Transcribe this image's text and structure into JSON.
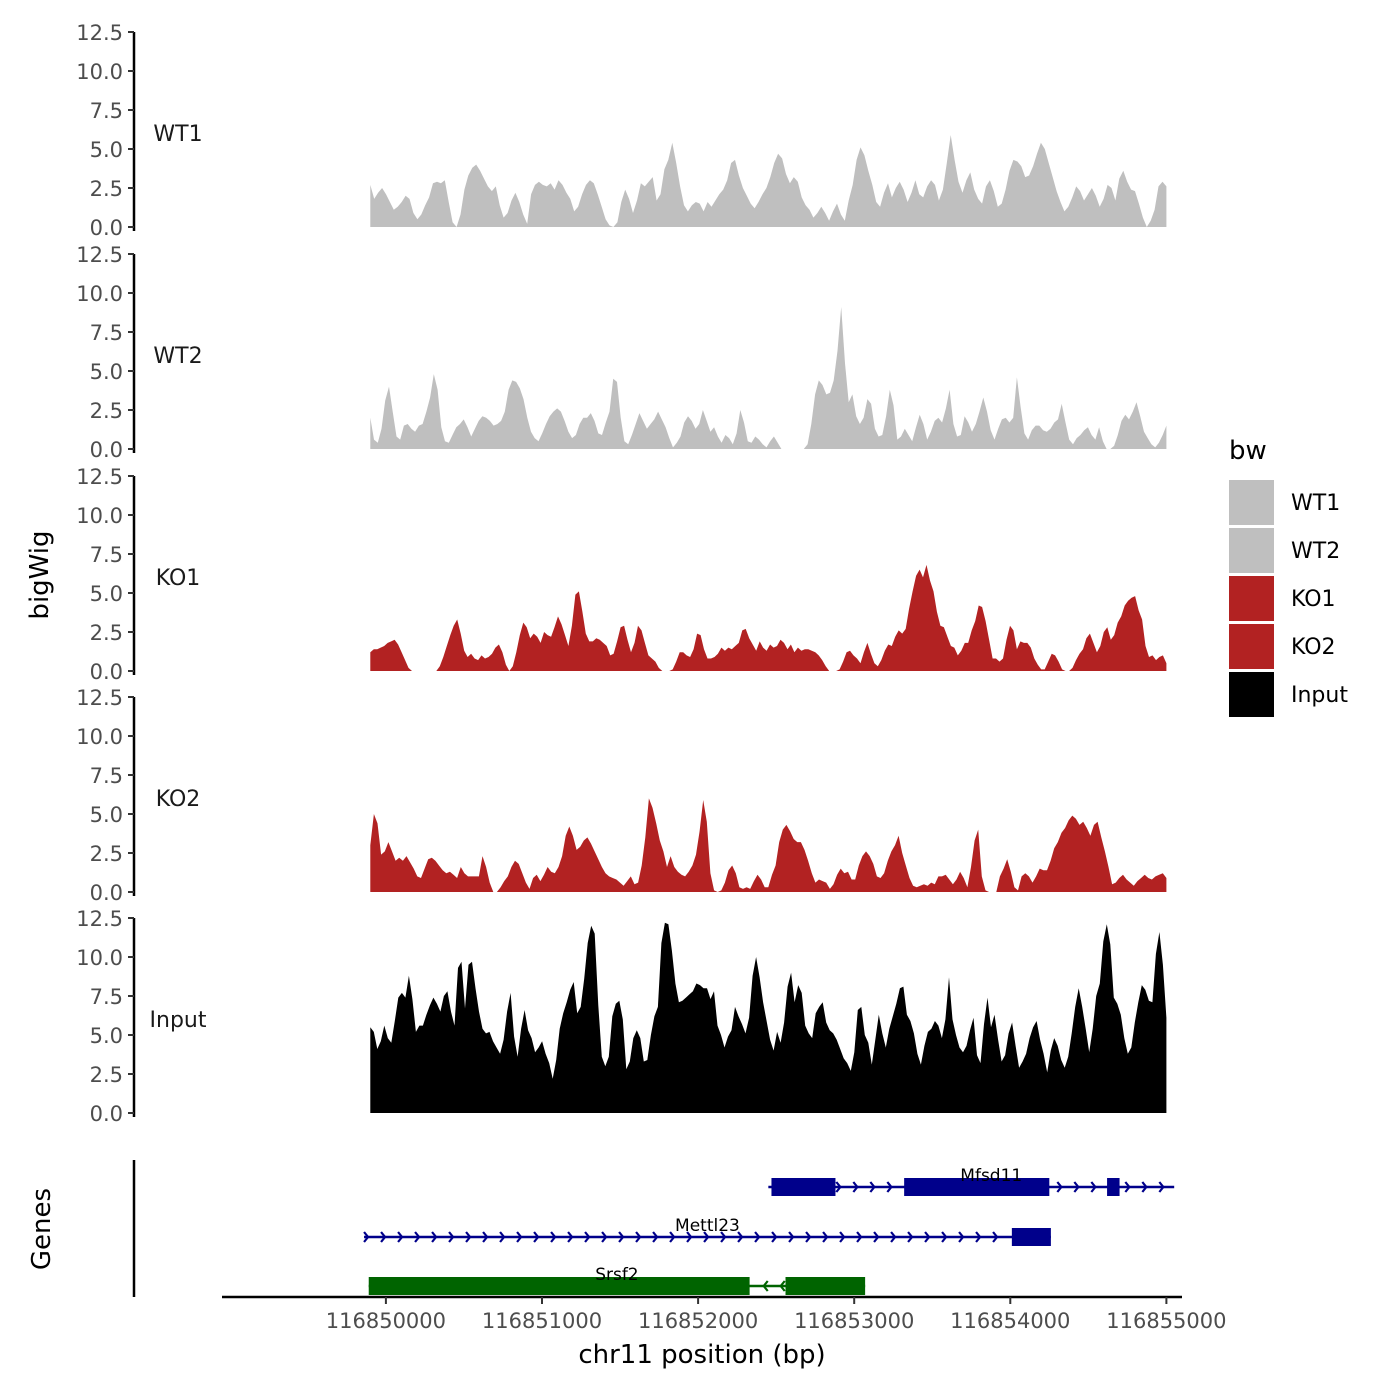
{
  "chart_data": {
    "type": "area",
    "y_axis_label": "bigWig",
    "x_axis_label": "chr11 position (bp)",
    "genes_axis_label": "Genes",
    "x_range": [
      116848950,
      116855100
    ],
    "x_ticks": [
      116850000,
      116851000,
      116852000,
      116853000,
      116854000,
      116855000
    ],
    "x_tick_labels": [
      "116850000",
      "116851000",
      "116852000",
      "116853000",
      "116854000",
      "116855000"
    ],
    "y_range": [
      0,
      12.5
    ],
    "y_ticks": [
      0,
      2.5,
      5,
      7.5,
      10,
      12.5
    ],
    "y_tick_labels": [
      "0.0",
      "2.5",
      "5.0",
      "7.5",
      "10.0",
      "12.5"
    ],
    "track_x_start": 116849900,
    "track_x_end": 116855000,
    "legend": {
      "title": "bw",
      "entries": [
        {
          "label": "WT1",
          "color": "#bfbfbf"
        },
        {
          "label": "WT2",
          "color": "#bfbfbf"
        },
        {
          "label": "KO1",
          "color": "#b22222"
        },
        {
          "label": "KO2",
          "color": "#b22222"
        },
        {
          "label": "Input",
          "color": "#000000"
        }
      ]
    },
    "tracks": [
      {
        "name": "WT1",
        "color": "#bfbfbf",
        "values": [
          2.7,
          1.8,
          2.2,
          2.5,
          2.1,
          1.6,
          1.1,
          1.3,
          1.6,
          2.0,
          1.8,
          0.9,
          0.5,
          0.8,
          1.4,
          1.9,
          2.8,
          2.9,
          2.8,
          3.0,
          1.6,
          0.3,
          0.0,
          0.8,
          2.4,
          3.3,
          3.8,
          4.0,
          3.6,
          3.1,
          2.6,
          2.3,
          2.6,
          1.4,
          0.6,
          0.9,
          1.7,
          2.2,
          1.6,
          0.8,
          0.2,
          2.1,
          2.7,
          2.9,
          2.7,
          2.6,
          2.8,
          2.4,
          3.0,
          2.7,
          2.2,
          1.8,
          1.0,
          1.3,
          2.1,
          2.7,
          3.0,
          2.8,
          2.1,
          1.3,
          0.5,
          0.1,
          0.0,
          0.3,
          1.6,
          2.4,
          1.8,
          0.9,
          1.7,
          2.8,
          2.6,
          2.9,
          3.2,
          1.7,
          2.1,
          3.7,
          4.3,
          5.4,
          4.1,
          2.6,
          1.4,
          1.0,
          1.4,
          1.6,
          1.5,
          1.0,
          1.6,
          1.3,
          1.7,
          2.1,
          2.4,
          3.0,
          4.1,
          4.3,
          3.3,
          2.5,
          2.0,
          1.5,
          1.2,
          1.6,
          2.1,
          2.5,
          3.2,
          4.1,
          4.7,
          4.4,
          3.4,
          2.8,
          3.2,
          2.9,
          1.9,
          1.4,
          1.1,
          0.6,
          0.9,
          1.3,
          0.9,
          0.4,
          1.0,
          1.5,
          0.8,
          0.4,
          1.7,
          2.7,
          4.3,
          5.1,
          4.6,
          3.6,
          2.7,
          1.6,
          1.3,
          2.2,
          2.8,
          1.9,
          2.5,
          2.9,
          2.4,
          1.6,
          2.2,
          3.0,
          2.1,
          1.9,
          2.6,
          3.0,
          2.7,
          1.7,
          2.4,
          4.1,
          5.9,
          4.3,
          2.9,
          2.2,
          3.0,
          3.5,
          2.4,
          1.8,
          1.5,
          2.6,
          3.0,
          2.3,
          1.3,
          1.5,
          2.4,
          3.6,
          4.3,
          4.2,
          3.9,
          3.2,
          3.3,
          3.9,
          4.7,
          5.4,
          5.0,
          4.1,
          3.2,
          2.3,
          1.6,
          1.0,
          1.3,
          1.9,
          2.6,
          2.3,
          1.7,
          2.1,
          2.5,
          2.0,
          1.3,
          1.8,
          2.7,
          2.5,
          1.7,
          3.1,
          3.6,
          2.9,
          2.4,
          2.3,
          1.5,
          0.6,
          0.0,
          0.4,
          1.1,
          2.6,
          2.9,
          2.6
        ]
      },
      {
        "name": "WT2",
        "color": "#bfbfbf",
        "values": [
          2.0,
          0.6,
          0.4,
          1.3,
          3.1,
          4.0,
          2.4,
          0.8,
          0.6,
          1.5,
          1.6,
          1.3,
          1.1,
          1.5,
          1.6,
          2.4,
          3.3,
          4.8,
          3.8,
          1.4,
          0.5,
          0.4,
          0.9,
          1.4,
          1.6,
          1.9,
          1.4,
          0.8,
          1.3,
          1.8,
          2.1,
          2.0,
          1.8,
          1.5,
          1.6,
          1.8,
          2.4,
          3.8,
          4.4,
          4.3,
          3.9,
          3.2,
          2.0,
          1.1,
          0.7,
          0.5,
          1.0,
          1.6,
          2.1,
          2.4,
          2.6,
          2.4,
          1.8,
          1.1,
          0.7,
          0.9,
          1.6,
          2.0,
          2.0,
          2.3,
          1.8,
          1.0,
          0.9,
          1.7,
          2.4,
          4.5,
          4.3,
          2.0,
          0.5,
          0.3,
          0.9,
          1.6,
          2.3,
          1.8,
          1.3,
          1.6,
          1.9,
          2.4,
          1.9,
          1.4,
          0.7,
          0.1,
          0.4,
          0.8,
          1.7,
          2.1,
          1.8,
          1.3,
          1.6,
          2.5,
          1.8,
          1.1,
          1.4,
          0.8,
          0.4,
          0.9,
          0.7,
          0.3,
          1.0,
          2.5,
          1.7,
          0.5,
          0.4,
          0.8,
          0.6,
          0.3,
          0.1,
          0.5,
          0.8,
          0.4,
          0.0,
          0.0,
          0.0,
          0.0,
          0.0,
          0.0,
          0.0,
          0.3,
          1.6,
          3.5,
          4.4,
          4.1,
          3.5,
          3.6,
          4.4,
          6.3,
          9.1,
          5.5,
          3.0,
          3.5,
          2.1,
          1.6,
          2.0,
          3.2,
          2.9,
          1.3,
          0.8,
          0.9,
          2.1,
          3.8,
          2.8,
          0.6,
          0.8,
          1.3,
          0.9,
          0.5,
          1.4,
          2.2,
          1.6,
          0.6,
          1.1,
          1.8,
          2.0,
          1.7,
          2.6,
          3.8,
          1.6,
          0.8,
          0.9,
          2.1,
          1.7,
          1.1,
          1.6,
          2.4,
          3.3,
          2.4,
          1.2,
          0.6,
          1.3,
          1.9,
          2.0,
          1.7,
          2.0,
          4.6,
          2.7,
          1.0,
          0.6,
          1.2,
          1.5,
          1.5,
          1.2,
          1.1,
          1.3,
          1.7,
          1.9,
          2.9,
          1.7,
          0.6,
          0.3,
          0.7,
          0.9,
          1.2,
          1.4,
          0.9,
          0.6,
          1.4,
          0.5,
          0.0,
          0.0,
          0.2,
          0.9,
          1.8,
          2.2,
          1.9,
          2.4,
          3.0,
          2.1,
          1.1,
          0.7,
          0.3,
          0.1,
          0.4,
          0.9,
          1.5
        ]
      },
      {
        "name": "KO1",
        "color": "#b22222",
        "values": [
          1.2,
          1.4,
          1.4,
          1.5,
          1.6,
          1.8,
          1.9,
          2.0,
          1.7,
          1.2,
          0.7,
          0.2,
          0.0,
          0.0,
          0.0,
          0.0,
          0.0,
          0.0,
          0.0,
          0.0,
          0.3,
          0.9,
          1.6,
          2.3,
          2.9,
          3.3,
          2.4,
          1.3,
          0.9,
          1.1,
          0.8,
          0.7,
          1.0,
          0.8,
          0.9,
          1.1,
          1.5,
          1.7,
          1.2,
          0.4,
          0.0,
          0.3,
          1.2,
          2.3,
          3.1,
          2.8,
          2.1,
          2.4,
          2.2,
          1.8,
          2.5,
          2.3,
          2.2,
          2.8,
          3.5,
          3.0,
          2.3,
          1.6,
          2.9,
          4.9,
          5.1,
          3.8,
          2.4,
          1.9,
          1.9,
          2.1,
          2.0,
          1.8,
          1.6,
          1.0,
          1.1,
          1.9,
          2.8,
          2.9,
          2.0,
          1.2,
          1.8,
          2.9,
          2.6,
          1.8,
          1.0,
          0.8,
          0.6,
          0.2,
          0.0,
          0.0,
          0.0,
          0.1,
          0.6,
          1.2,
          1.2,
          1.0,
          0.9,
          1.4,
          2.4,
          2.3,
          1.4,
          0.8,
          0.8,
          0.9,
          1.1,
          1.5,
          1.3,
          1.5,
          1.4,
          1.6,
          1.8,
          2.6,
          2.7,
          2.1,
          1.7,
          1.3,
          1.9,
          1.5,
          1.3,
          1.7,
          1.5,
          1.6,
          2.0,
          1.8,
          1.4,
          1.7,
          1.2,
          1.5,
          1.3,
          1.4,
          1.4,
          1.3,
          1.2,
          1.0,
          0.7,
          0.3,
          0.0,
          0.0,
          0.0,
          0.1,
          0.6,
          1.2,
          1.3,
          1.0,
          0.8,
          0.5,
          1.2,
          1.8,
          1.1,
          0.5,
          0.3,
          0.7,
          1.3,
          1.7,
          1.6,
          2.2,
          2.6,
          2.4,
          2.7,
          4.0,
          5.1,
          6.1,
          6.5,
          6.0,
          6.8,
          5.8,
          5.1,
          3.8,
          2.9,
          2.8,
          2.2,
          1.6,
          1.5,
          1.0,
          1.3,
          1.8,
          1.8,
          2.6,
          3.2,
          4.2,
          4.1,
          3.2,
          2.0,
          0.8,
          0.8,
          0.6,
          0.8,
          2.0,
          2.9,
          2.6,
          1.4,
          1.9,
          1.8,
          1.8,
          1.5,
          0.8,
          0.4,
          0.1,
          0.1,
          0.6,
          1.1,
          1.0,
          0.6,
          0.1,
          0.0,
          0.0,
          0.2,
          0.7,
          1.1,
          1.4,
          2.1,
          2.4,
          1.8,
          1.2,
          1.6,
          2.5,
          2.8,
          2.0,
          2.3,
          3.1,
          3.5,
          4.2,
          4.5,
          4.7,
          4.8,
          3.9,
          3.3,
          1.6,
          0.9,
          1.0,
          0.7,
          0.9,
          1.0,
          0.5
        ]
      },
      {
        "name": "KO2",
        "color": "#b22222",
        "values": [
          3.0,
          5.0,
          4.4,
          2.4,
          2.6,
          3.2,
          2.6,
          2.0,
          2.2,
          2.0,
          2.3,
          1.9,
          1.5,
          1.0,
          0.9,
          1.5,
          2.1,
          2.2,
          2.0,
          1.7,
          1.4,
          1.2,
          1.3,
          1.1,
          0.9,
          1.6,
          1.2,
          1.0,
          1.0,
          1.0,
          1.0,
          2.3,
          1.6,
          0.6,
          0.0,
          0.0,
          0.3,
          0.7,
          1.0,
          1.6,
          2.0,
          1.8,
          1.2,
          0.6,
          0.2,
          0.9,
          1.1,
          0.7,
          1.1,
          1.6,
          1.3,
          1.2,
          1.6,
          2.3,
          3.6,
          4.2,
          3.6,
          2.7,
          2.9,
          3.3,
          3.5,
          3.1,
          2.6,
          2.1,
          1.6,
          1.2,
          1.0,
          0.9,
          0.8,
          0.6,
          0.4,
          0.7,
          1.0,
          0.5,
          0.6,
          1.7,
          3.5,
          6.0,
          5.4,
          4.4,
          3.3,
          2.6,
          1.6,
          2.3,
          1.6,
          1.3,
          1.1,
          1.0,
          1.3,
          1.7,
          2.4,
          3.9,
          5.9,
          4.5,
          1.2,
          0.1,
          0.0,
          0.1,
          0.6,
          1.4,
          1.7,
          1.2,
          0.3,
          0.2,
          0.3,
          0.2,
          0.7,
          1.1,
          0.8,
          0.3,
          0.3,
          1.1,
          1.7,
          3.2,
          4.0,
          4.3,
          3.9,
          3.4,
          3.2,
          3.2,
          2.7,
          2.0,
          1.2,
          0.6,
          0.8,
          0.7,
          0.6,
          0.2,
          0.5,
          1.1,
          1.5,
          1.2,
          1.3,
          0.8,
          0.8,
          1.7,
          2.3,
          2.6,
          2.3,
          1.8,
          1.0,
          0.9,
          1.2,
          2.0,
          2.6,
          3.0,
          3.6,
          2.5,
          1.7,
          0.9,
          0.4,
          0.3,
          0.4,
          0.5,
          0.4,
          0.6,
          0.5,
          1.0,
          1.0,
          1.1,
          0.8,
          0.5,
          0.8,
          1.3,
          0.9,
          0.3,
          1.6,
          3.3,
          4.0,
          1.0,
          0.1,
          0.0,
          0.0,
          0.0,
          1.0,
          1.5,
          2.1,
          1.3,
          0.3,
          0.1,
          1.0,
          1.2,
          1.0,
          0.6,
          1.0,
          1.5,
          1.4,
          1.4,
          2.0,
          2.8,
          3.2,
          3.8,
          4.1,
          4.6,
          4.9,
          4.7,
          4.3,
          4.5,
          4.1,
          3.6,
          4.3,
          4.5,
          3.5,
          2.6,
          1.6,
          0.5,
          0.6,
          0.9,
          1.1,
          0.8,
          0.6,
          0.4,
          0.7,
          0.9,
          1.1,
          0.9,
          0.8,
          1.0,
          1.1,
          1.2,
          0.9
        ]
      },
      {
        "name": "Input",
        "color": "#000000",
        "values": [
          5.5,
          5.2,
          4.1,
          4.6,
          5.6,
          4.8,
          4.5,
          5.9,
          7.4,
          7.7,
          7.4,
          8.8,
          7.3,
          5.2,
          5.6,
          5.6,
          6.3,
          6.9,
          7.4,
          7.0,
          6.5,
          7.5,
          7.8,
          6.5,
          5.6,
          9.3,
          9.7,
          6.7,
          9.5,
          9.7,
          8.0,
          6.5,
          5.4,
          5.1,
          5.2,
          4.6,
          4.2,
          3.8,
          4.7,
          6.5,
          7.7,
          4.9,
          3.6,
          5.4,
          6.6,
          5.3,
          4.8,
          3.9,
          4.2,
          4.6,
          3.8,
          3.2,
          2.2,
          3.4,
          5.4,
          6.4,
          7.1,
          7.9,
          8.4,
          6.4,
          6.8,
          8.6,
          10.9,
          12.0,
          11.5,
          6.9,
          3.6,
          3.0,
          3.6,
          6.2,
          7.0,
          7.2,
          6.0,
          2.8,
          3.3,
          4.8,
          5.3,
          4.8,
          3.3,
          3.4,
          5.0,
          6.2,
          6.8,
          10.9,
          12.2,
          12.1,
          10.4,
          8.3,
          7.1,
          7.2,
          7.4,
          7.6,
          7.8,
          8.3,
          8.2,
          8.0,
          8.0,
          7.3,
          7.8,
          5.6,
          5.0,
          4.2,
          4.9,
          5.3,
          6.8,
          6.2,
          5.7,
          5.1,
          6.1,
          8.8,
          10.0,
          8.7,
          7.1,
          5.9,
          4.7,
          4.0,
          5.2,
          4.5,
          5.8,
          8.1,
          9.0,
          7.1,
          8.2,
          7.7,
          5.6,
          5.1,
          4.8,
          6.4,
          6.8,
          7.1,
          5.8,
          5.3,
          5.1,
          4.7,
          4.1,
          3.5,
          3.2,
          2.7,
          3.9,
          6.6,
          6.8,
          5.0,
          4.5,
          3.1,
          4.7,
          6.3,
          5.1,
          4.2,
          5.4,
          6.2,
          7.0,
          8.0,
          8.1,
          6.3,
          5.9,
          5.1,
          3.8,
          3.1,
          4.3,
          5.2,
          5.4,
          5.9,
          5.6,
          4.8,
          6.0,
          8.7,
          6.0,
          5.0,
          4.2,
          3.9,
          4.3,
          5.3,
          6.1,
          3.7,
          3.2,
          5.7,
          7.4,
          5.5,
          6.3,
          4.7,
          3.3,
          3.7,
          5.1,
          5.8,
          4.3,
          2.9,
          3.3,
          3.8,
          4.8,
          5.5,
          5.9,
          4.7,
          3.8,
          2.6,
          4.0,
          4.8,
          4.3,
          3.4,
          2.9,
          3.6,
          5.1,
          6.8,
          8.0,
          6.8,
          5.4,
          3.9,
          5.4,
          7.5,
          8.3,
          11.0,
          12.1,
          10.8,
          7.4,
          7.0,
          6.3,
          4.8,
          3.8,
          4.2,
          5.8,
          7.1,
          8.2,
          7.9,
          7.2,
          7.1,
          10.2,
          11.6,
          9.5,
          6.1
        ]
      }
    ],
    "genes": [
      {
        "name": "Mfsd11",
        "start": 116852450,
        "end": 116855050,
        "strand": "+",
        "color": "#00008b",
        "exons": [
          [
            116852470,
            116852880
          ],
          [
            116853320,
            116854250
          ],
          [
            116854620,
            116854700
          ]
        ]
      },
      {
        "name": "Mettl23",
        "start": 116849860,
        "end": 116854260,
        "strand": "+",
        "color": "#00008b",
        "exons": [
          [
            116854010,
            116854260
          ]
        ]
      },
      {
        "name": "Srsf2",
        "start": 116849890,
        "end": 116853070,
        "strand": "-",
        "color": "#006400",
        "exons": [
          [
            116849890,
            116852330
          ],
          [
            116852560,
            116853070
          ]
        ]
      }
    ]
  }
}
